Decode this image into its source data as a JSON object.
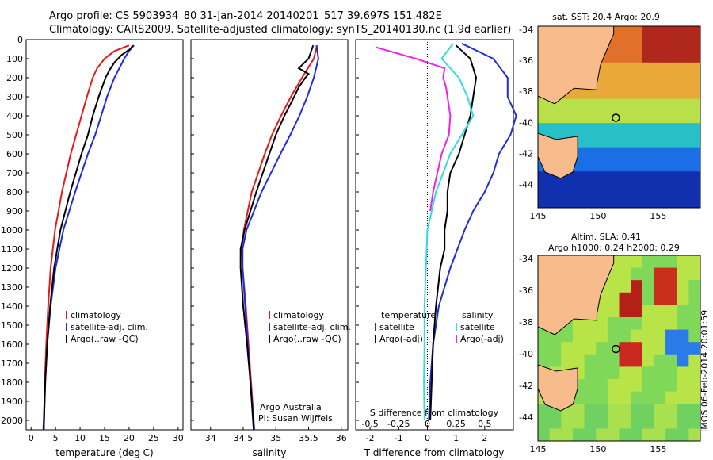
{
  "header": {
    "line1": "Argo profile: CS 5903934_80 31-Jan-2014 20140201_517 39.697S 151.482E",
    "line2": "Climatology: CARS2009. Satellite-adjusted climatology: synTS_20140130.nc (1.9d earlier)"
  },
  "colors": {
    "climatology": "#e41a1c",
    "satellite": "#1f2de0",
    "argo": "#000000",
    "salinity_sat": "#33dddd",
    "salinity_argo": "#ee22ee",
    "land": "#f7bb8c",
    "ocean_panel_bg": "#ffffff"
  },
  "side_label": "IMOS 06-Feb-2014 20:01:59",
  "chart_data": [
    {
      "type": "line",
      "xlabel": "temperature (deg C)",
      "ylabel": "",
      "xlim": [
        -1,
        31
      ],
      "ylim": [
        2050,
        0
      ],
      "xticks": [
        0,
        5,
        10,
        15,
        20,
        25,
        30
      ],
      "yticks": [
        0,
        100,
        200,
        300,
        400,
        500,
        600,
        700,
        800,
        900,
        1000,
        1100,
        1200,
        1300,
        1400,
        1500,
        1600,
        1700,
        1800,
        1900,
        2000
      ],
      "legend": [
        "climatology",
        "satellite-adj. clim.",
        "Argo(..raw -QC)"
      ],
      "series": [
        {
          "name": "climatology",
          "color": "#e41a1c",
          "y": [
            30,
            60,
            100,
            150,
            200,
            300,
            400,
            500,
            600,
            800,
            1000,
            1200,
            1400,
            1600,
            1800,
            2050
          ],
          "x": [
            20.0,
            17.0,
            15.0,
            13.5,
            12.6,
            11.4,
            10.3,
            9.2,
            8.1,
            6.3,
            4.9,
            4.0,
            3.5,
            3.1,
            2.8,
            2.6
          ]
        },
        {
          "name": "satellite-adj. clim.",
          "color": "#1f2de0",
          "y": [
            30,
            60,
            100,
            150,
            200,
            300,
            400,
            500,
            600,
            800,
            1000,
            1200,
            1400,
            1600,
            1800,
            2050
          ],
          "x": [
            21.0,
            20.0,
            19.0,
            18.0,
            17.0,
            15.5,
            14.3,
            13.1,
            11.6,
            9.0,
            6.6,
            5.0,
            4.0,
            3.3,
            2.9,
            2.5
          ]
        },
        {
          "name": "Argo(..raw -QC)",
          "color": "#000000",
          "y": [
            30,
            50,
            80,
            120,
            160,
            200,
            300,
            400,
            500,
            600,
            800,
            1000,
            1200,
            1400,
            1600,
            1800,
            2050
          ],
          "x": [
            20.8,
            20.2,
            18.5,
            17.0,
            16.0,
            15.2,
            13.8,
            12.6,
            11.6,
            10.3,
            8.0,
            6.0,
            4.7,
            3.9,
            3.3,
            2.9,
            2.6
          ]
        }
      ]
    },
    {
      "type": "line",
      "xlabel": "salinity",
      "xlim": [
        33.7,
        36.1
      ],
      "ylim": [
        2050,
        0
      ],
      "xticks": [
        34,
        34.5,
        35,
        35.5,
        36
      ],
      "legend": [
        "climatology",
        "satellite-adj. clim.",
        "Argo(..raw -QC)"
      ],
      "annotation": [
        "Argo Australia",
        "PI: Susan Wijffels"
      ],
      "series": [
        {
          "name": "climatology",
          "color": "#e41a1c",
          "y": [
            30,
            100,
            200,
            300,
            400,
            500,
            600,
            800,
            1000,
            1100,
            1200,
            1400,
            1600,
            1800,
            2050
          ],
          "x": [
            35.63,
            35.58,
            35.4,
            35.23,
            35.08,
            34.94,
            34.83,
            34.63,
            34.51,
            34.48,
            34.49,
            34.54,
            34.58,
            34.62,
            34.67
          ]
        },
        {
          "name": "satellite-adj. clim.",
          "color": "#1f2de0",
          "y": [
            30,
            100,
            200,
            300,
            400,
            500,
            600,
            800,
            1000,
            1100,
            1200,
            1400,
            1600,
            1800,
            2050
          ],
          "x": [
            35.62,
            35.65,
            35.58,
            35.48,
            35.36,
            35.22,
            35.07,
            34.78,
            34.55,
            34.49,
            34.49,
            34.53,
            34.57,
            34.61,
            34.67
          ]
        },
        {
          "name": "Argo(..raw -QC)",
          "color": "#000000",
          "y": [
            30,
            100,
            150,
            180,
            200,
            250,
            300,
            400,
            500,
            600,
            800,
            1000,
            1100,
            1200,
            1400,
            1600,
            1800,
            2050
          ],
          "x": [
            35.57,
            35.5,
            35.35,
            35.5,
            35.45,
            35.35,
            35.28,
            35.13,
            35.0,
            34.9,
            34.7,
            34.52,
            34.46,
            34.46,
            34.5,
            34.56,
            34.61,
            34.66
          ]
        }
      ]
    },
    {
      "type": "line",
      "xlabel": "T difference from climatology",
      "xlabel_top": "S difference from climatology",
      "xlim": [
        -2.5,
        3
      ],
      "ylim": [
        2050,
        0
      ],
      "xticks": [
        -2,
        -1,
        0,
        1,
        2
      ],
      "xticks_top": [
        -0.5,
        -0.25,
        0,
        0.25,
        0.5
      ],
      "legend_left": {
        "title": "temperature",
        "items": [
          "satellite",
          "Argo(-adj)"
        ]
      },
      "legend_right": {
        "title": "salinity",
        "items": [
          "satellite",
          "Argo(-adj)"
        ]
      },
      "series": [
        {
          "name": "T satellite",
          "color": "#1f2de0",
          "y": [
            20,
            100,
            200,
            300,
            400,
            500,
            600,
            700,
            800,
            900,
            1000,
            1200,
            1400,
            1600,
            1800,
            2000
          ],
          "x": [
            1.2,
            2.3,
            2.8,
            2.8,
            3.1,
            2.9,
            2.5,
            2.3,
            2.0,
            1.6,
            1.3,
            0.8,
            0.4,
            0.2,
            0.1,
            0.05
          ]
        },
        {
          "name": "T Argo(-adj)",
          "color": "#000000",
          "y": [
            30,
            100,
            200,
            300,
            400,
            500,
            600,
            700,
            800,
            900,
            1000,
            1100,
            1200,
            1400,
            1600,
            1800,
            2000
          ],
          "x": [
            1.0,
            1.5,
            1.7,
            1.6,
            1.5,
            1.3,
            1.1,
            0.8,
            0.7,
            0.7,
            0.6,
            0.6,
            0.45,
            0.3,
            0.2,
            0.15,
            0.1
          ]
        },
        {
          "name": "S satellite",
          "color": "#33dddd",
          "y": [
            20,
            100,
            150,
            200,
            300,
            400,
            500,
            600,
            800,
            1000,
            1200,
            1400,
            1600,
            1800,
            2000
          ],
          "x": [
            0.9,
            0.5,
            0.8,
            1.1,
            1.4,
            1.6,
            1.2,
            0.8,
            0.3,
            0.0,
            -0.05,
            -0.1,
            -0.1,
            -0.12,
            -0.1
          ]
        },
        {
          "name": "S Argo(-adj)",
          "color": "#ee22ee",
          "y": [
            40,
            100,
            150,
            200,
            250,
            300,
            400,
            500,
            600,
            700,
            800,
            900
          ],
          "x": [
            -1.8,
            -0.4,
            0.6,
            0.55,
            0.65,
            0.7,
            0.8,
            0.75,
            0.5,
            0.35,
            0.2,
            0.1
          ]
        }
      ]
    },
    {
      "type": "heatmap",
      "title": "sat. SST: 20.4  Argo: 20.9",
      "xticks": [
        145,
        150,
        155
      ],
      "yticks": [
        -34,
        -36,
        -38,
        -40,
        -42,
        -44
      ],
      "xlim": [
        145,
        158.5
      ],
      "ylim": [
        -45.5,
        -33.8
      ],
      "marker": {
        "lon": 151.48,
        "lat": -39.7
      }
    },
    {
      "type": "heatmap",
      "title": "Altim. SLA: 0.41",
      "subtitle": "Argo h1000: 0.24  h2000: 0.29",
      "xticks": [
        145,
        150,
        155
      ],
      "yticks": [
        -34,
        -36,
        -38,
        -40,
        -42,
        -44
      ],
      "xlim": [
        145,
        158.5
      ],
      "ylim": [
        -45.5,
        -33.8
      ],
      "marker": {
        "lon": 151.48,
        "lat": -39.7
      }
    }
  ]
}
